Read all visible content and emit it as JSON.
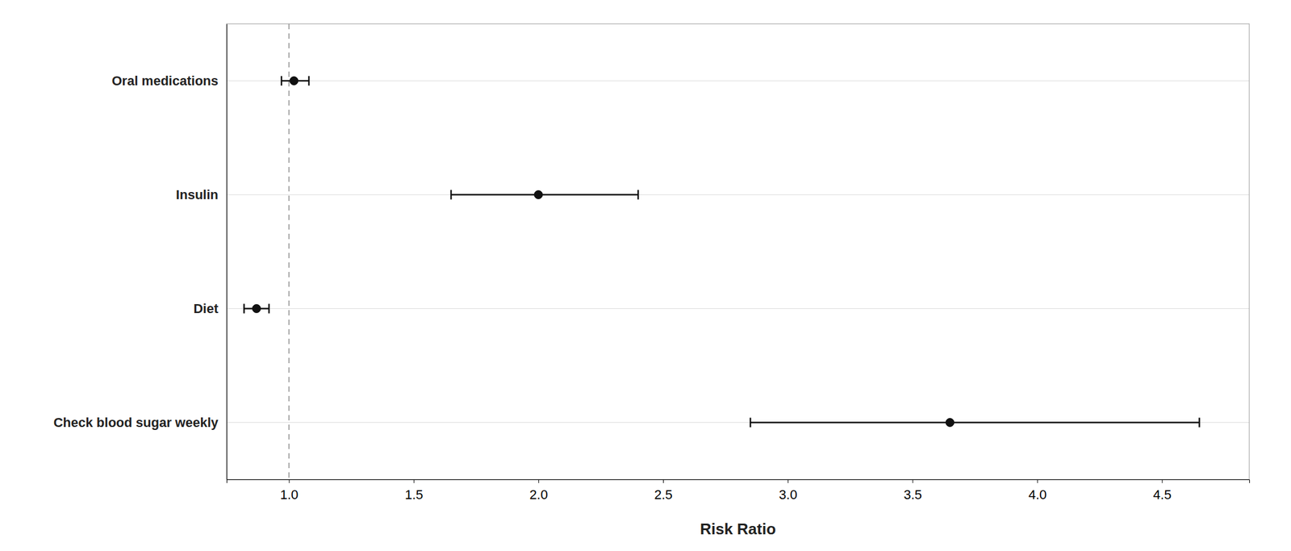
{
  "chart_data": {
    "type": "forest",
    "categories": [
      "Oral medications",
      "Insulin",
      "Diet",
      "Check blood sugar weekly"
    ],
    "values": [
      1.02,
      2.0,
      0.87,
      3.65
    ],
    "ci_low": [
      0.97,
      1.65,
      0.82,
      2.85
    ],
    "ci_high": [
      1.08,
      2.4,
      0.92,
      4.65
    ],
    "ref_line": 1.0,
    "xlabel": "Risk Ratio",
    "xlim": [
      0.75,
      4.85
    ],
    "xticks": [
      {
        "value": 1.0,
        "label": "1.0"
      },
      1.5,
      {
        "value": 2.0,
        "label": "2.0"
      },
      2.5,
      {
        "value": 3.0,
        "label": "3.0"
      },
      3.5,
      {
        "value": 4.0,
        "label": "4.0"
      },
      4.5
    ],
    "color": "#111111",
    "grid": true
  }
}
